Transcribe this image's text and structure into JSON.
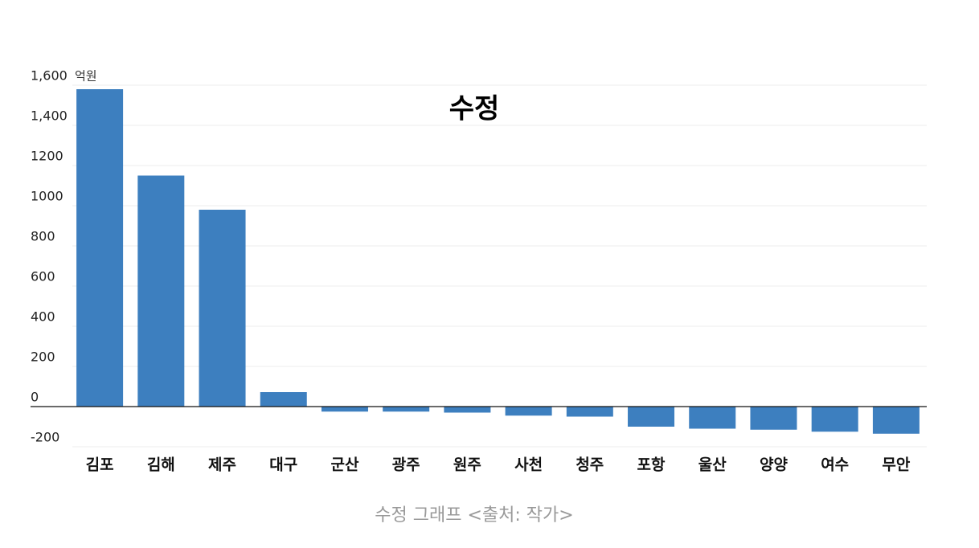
{
  "chart_data": {
    "type": "bar",
    "title": "수정",
    "y_unit": "억원",
    "caption": "수정 그래프 <출처: 작가>",
    "categories": [
      "김포",
      "김해",
      "제주",
      "대구",
      "군산",
      "광주",
      "원주",
      "사천",
      "청주",
      "포항",
      "울산",
      "양양",
      "여수",
      "무안"
    ],
    "values": [
      1580,
      1150,
      980,
      72,
      -25,
      -25,
      -30,
      -45,
      -50,
      -100,
      -110,
      -115,
      -125,
      -135
    ],
    "color": "#3d7fbf",
    "ylim": [
      -200,
      1600
    ],
    "yticks": [
      -200,
      0,
      200,
      400,
      600,
      800,
      1000,
      1200,
      {
        "value": 1400,
        "label": "1,400"
      },
      {
        "value": 1600,
        "label": "1,600"
      }
    ],
    "grid": true
  }
}
